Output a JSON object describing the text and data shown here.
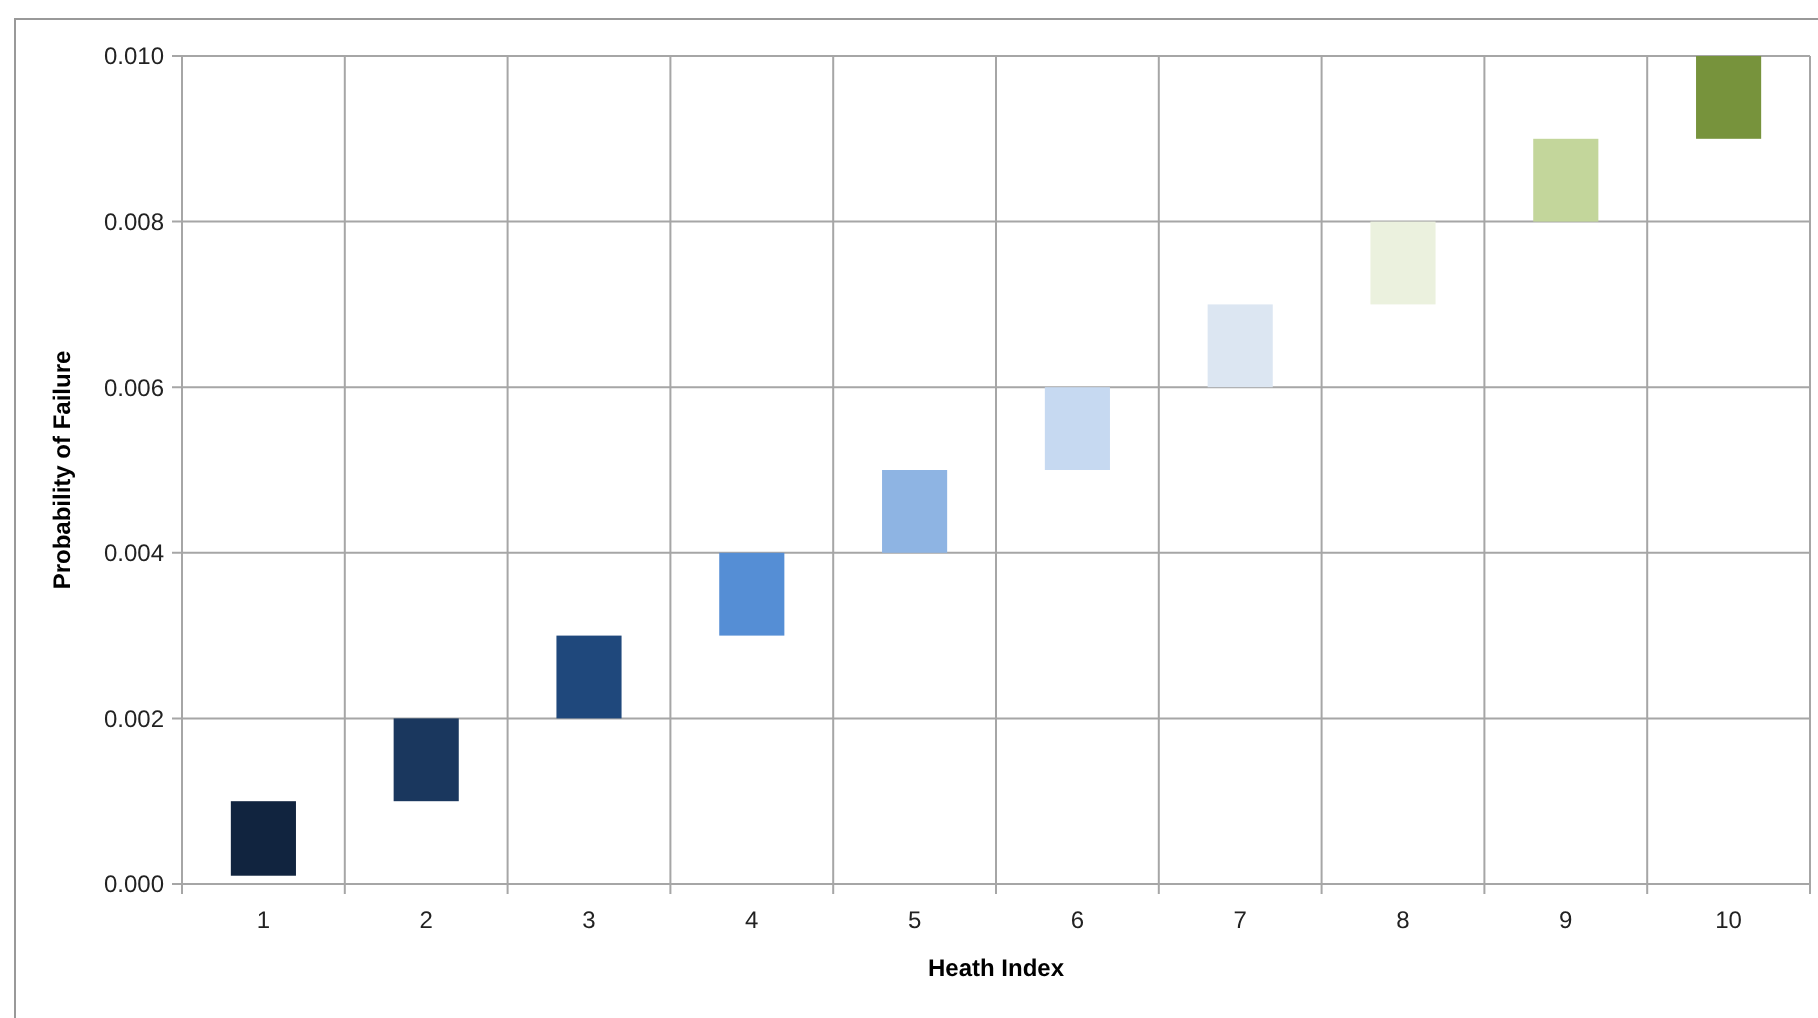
{
  "chart_data": {
    "type": "bar",
    "xlabel": "Heath Index",
    "ylabel": "Probability of Failure",
    "categories": [
      "1",
      "2",
      "3",
      "4",
      "5",
      "6",
      "7",
      "8",
      "9",
      "10"
    ],
    "base": [
      0.0001,
      0.001,
      0.002,
      0.003,
      0.004,
      0.005,
      0.006,
      0.007,
      0.008,
      0.009
    ],
    "values": [
      0.0009,
      0.001,
      0.001,
      0.001,
      0.001,
      0.001,
      0.001,
      0.001,
      0.001,
      0.001
    ],
    "colors": [
      "#11243f",
      "#1a375e",
      "#1f487c",
      "#558ed5",
      "#8eb4e3",
      "#c6d9f1",
      "#dce6f2",
      "#ebf1de",
      "#c3d69b",
      "#77933c"
    ],
    "ylim": [
      0,
      0.01
    ],
    "yticks": [
      {
        "value": 0,
        "label": "0.000"
      },
      {
        "value": 0.002,
        "label": "0.002"
      },
      {
        "value": 0.004,
        "label": "0.004"
      },
      {
        "value": 0.006,
        "label": "0.006"
      },
      {
        "value": 0.008,
        "label": "0.008"
      },
      {
        "value": 0.01,
        "label": "0.010"
      }
    ],
    "grid": true
  }
}
